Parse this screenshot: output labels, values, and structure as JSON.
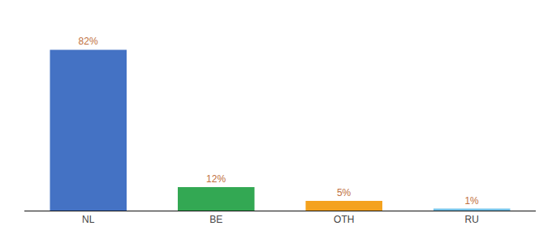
{
  "chart_data": {
    "type": "bar",
    "categories": [
      "NL",
      "BE",
      "OTH",
      "RU"
    ],
    "values": [
      82,
      12,
      5,
      1
    ],
    "value_labels": [
      "82%",
      "12%",
      "5%",
      "1%"
    ],
    "colors": [
      "#4472c4",
      "#33a853",
      "#f4a21f",
      "#74c2e8"
    ],
    "ylim": [
      0,
      95
    ],
    "data_labels": true,
    "grid": false,
    "tick_labels": "x"
  }
}
